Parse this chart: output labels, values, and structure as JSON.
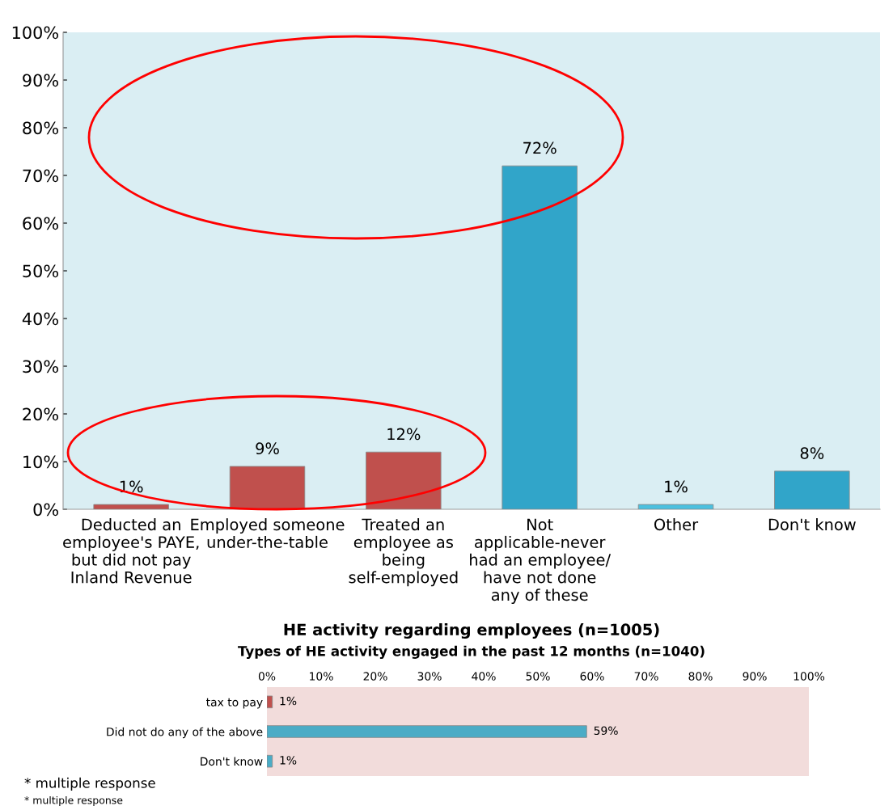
{
  "chart_data": [
    {
      "type": "bar",
      "orientation": "horizontal",
      "title": "Types of HE activity engaged in the past 12 months (n=1040)",
      "categories": [
        "tax to pay",
        "Did not do any of the above",
        "Don't know"
      ],
      "values": [
        1,
        59,
        1
      ],
      "colors": [
        "#c0504d",
        "#4bacc6",
        "#4bacc6"
      ],
      "xlim": [
        0,
        100
      ],
      "xticks": [
        {
          "value": 0,
          "label": "0%"
        },
        {
          "value": 10,
          "label": "10%"
        },
        {
          "value": 20,
          "label": "20%"
        },
        {
          "value": 30,
          "label": "30%"
        },
        {
          "value": 40,
          "label": "40%"
        },
        {
          "value": 50,
          "label": "50%"
        },
        {
          "value": 60,
          "label": "60%"
        },
        {
          "value": 70,
          "label": "70%"
        },
        {
          "value": 80,
          "label": "80%"
        },
        {
          "value": 90,
          "label": "90%"
        },
        {
          "value": 100,
          "label": "100%"
        }
      ],
      "value_labels": [
        "1%",
        "59%",
        "1%"
      ],
      "annotations": [
        "* multiple response"
      ],
      "grid": false
    },
    {
      "type": "bar",
      "title": "HE activity regarding employees (n=1005)",
      "categories": [
        "Deducted an employee's PAYE, but did not pay Inland Revenue",
        "Employed someone under-the-table",
        "Treated an employee as being self-employed",
        "Not applicable-never had an employee/ have not done any of these",
        "Other",
        "Don't know"
      ],
      "values": [
        1,
        9,
        12,
        72,
        1,
        8
      ],
      "colors": [
        "#c0504d",
        "#c0504d",
        "#c0504d",
        "#31a5c9",
        "#4bc0df",
        "#31a5c9"
      ],
      "ylim": [
        0,
        100
      ],
      "yticks": [
        {
          "value": 0,
          "label": "0%"
        },
        {
          "value": 10,
          "label": "10%"
        },
        {
          "value": 20,
          "label": "20%"
        },
        {
          "value": 30,
          "label": "30%"
        },
        {
          "value": 40,
          "label": "40%"
        },
        {
          "value": 50,
          "label": "50%"
        },
        {
          "value": 60,
          "label": "60%"
        },
        {
          "value": 70,
          "label": "70%"
        },
        {
          "value": 80,
          "label": "80%"
        },
        {
          "value": 90,
          "label": "90%"
        },
        {
          "value": 100,
          "label": "100%"
        }
      ],
      "value_labels": [
        "1%",
        "9%",
        "12%",
        "72%",
        "1%",
        "8%"
      ],
      "annotations": [
        "* multiple response"
      ],
      "grid": false
    }
  ]
}
